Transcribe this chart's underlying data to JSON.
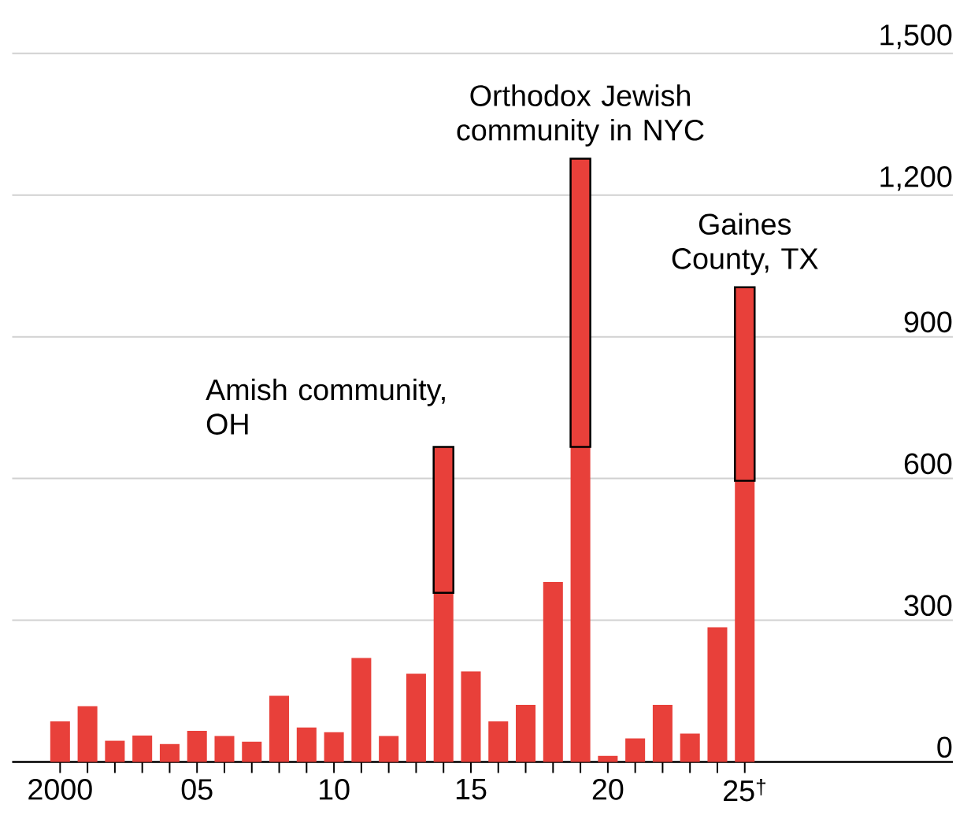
{
  "chart_data": {
    "type": "bar",
    "stacked": true,
    "categories": [
      "2000",
      null,
      null,
      null,
      null,
      "05",
      null,
      null,
      null,
      null,
      "10",
      null,
      null,
      null,
      null,
      "15",
      null,
      null,
      null,
      null,
      "20",
      null,
      null,
      null,
      null,
      "25$^{†}$"
    ],
    "series": [
      {
        "color": "#e8403a",
        "values": [
          86,
          118,
          45,
          56,
          38,
          66,
          55,
          43,
          140,
          73,
          63,
          220,
          55,
          187,
          358,
          192,
          86,
          121,
          381,
          667,
          13,
          50,
          121,
          60,
          285,
          595
        ]
      },
      {
        "color": "#e8403a",
        "values": [
          null,
          null,
          null,
          null,
          null,
          null,
          null,
          null,
          null,
          null,
          null,
          null,
          null,
          null,
          309,
          null,
          null,
          null,
          null,
          610,
          null,
          null,
          null,
          null,
          null,
          410
        ]
      }
    ],
    "ylim": [
      0,
      1500
    ],
    "yticks": [
      0,
      300,
      600,
      900,
      {
        "value": 1200,
        "label": "1,200"
      },
      {
        "value": 1500,
        "label": "1,500"
      }
    ],
    "grid": "y",
    "annotations": [
      "Amish community, OH",
      "Orthodox Jewish community in NYC",
      "Gaines County, TX"
    ]
  }
}
